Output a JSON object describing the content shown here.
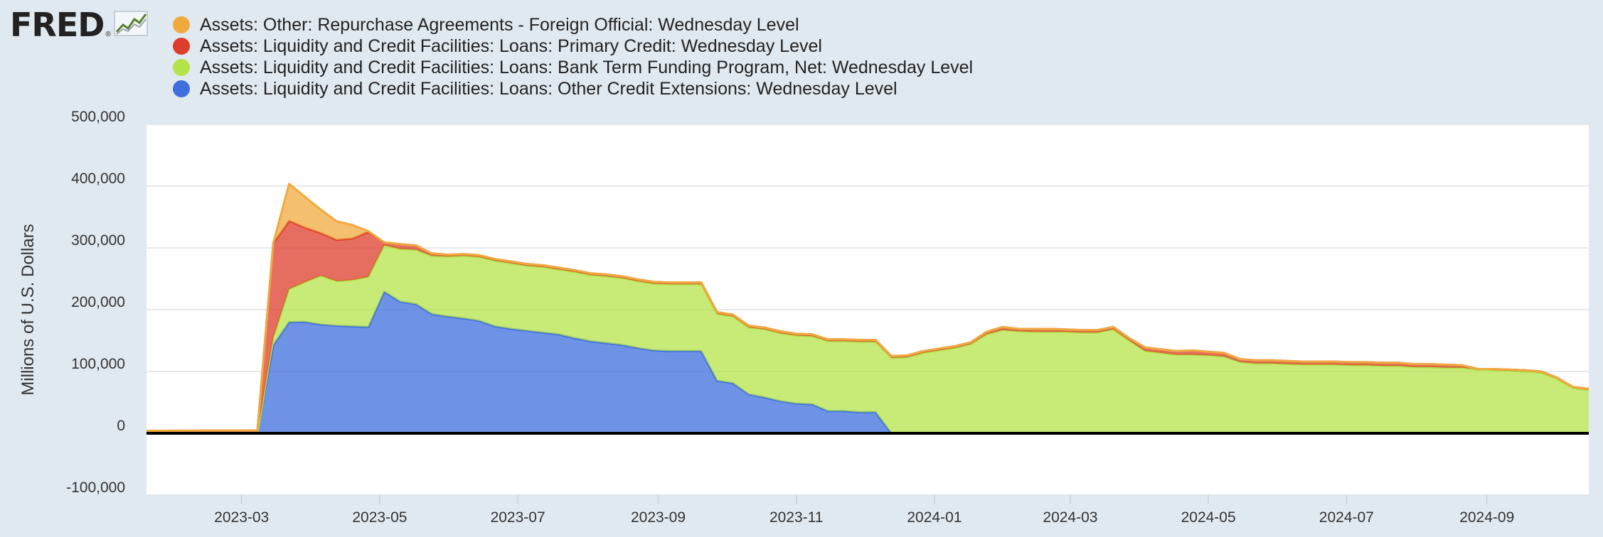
{
  "brand": {
    "name": "FRED",
    "reg": "®",
    "icon": "trend-line-icon"
  },
  "colors": {
    "background": "#e1e9f0",
    "plot": "#ffffff",
    "repo": "#f0a93f",
    "primary": "#dd3d2b",
    "btfp": "#b5e34a",
    "other": "#3e6fdd"
  },
  "chart_data": {
    "type": "area",
    "stacked": true,
    "ylabel": "Millions of U.S. Dollars",
    "ylim": [
      -100000,
      500000
    ],
    "yticks": [
      -100000,
      0,
      100000,
      200000,
      300000,
      400000,
      500000
    ],
    "ytick_labels": [
      "-100,000",
      "0",
      "100,000",
      "200,000",
      "300,000",
      "400,000",
      "500,000"
    ],
    "xlim": [
      "2023-01-18",
      "2024-10-16"
    ],
    "xticks": [
      "2023-03-01",
      "2023-05-01",
      "2023-07-01",
      "2023-09-01",
      "2023-11-01",
      "2024-01-01",
      "2024-03-01",
      "2024-05-01",
      "2024-07-01",
      "2024-09-01"
    ],
    "xtick_labels": [
      "2023-03",
      "2023-05",
      "2023-07",
      "2023-09",
      "2023-11",
      "2024-01",
      "2024-03",
      "2024-05",
      "2024-07",
      "2024-09"
    ],
    "grid": true,
    "legend": "top",
    "series": [
      {
        "name": "Assets: Liquidity and Credit Facilities: Loans: Other Credit Extensions: Wednesday Level",
        "color": "#3e6fdd",
        "points": [
          [
            "2023-01-18",
            0
          ],
          [
            "2023-03-08",
            0
          ],
          [
            "2023-03-15",
            142800
          ],
          [
            "2023-03-22",
            179800
          ],
          [
            "2023-03-29",
            180100
          ],
          [
            "2023-04-05",
            176000
          ],
          [
            "2023-04-12",
            174000
          ],
          [
            "2023-04-19",
            173000
          ],
          [
            "2023-04-26",
            172000
          ],
          [
            "2023-05-03",
            229000
          ],
          [
            "2023-05-10",
            213000
          ],
          [
            "2023-05-17",
            209000
          ],
          [
            "2023-05-24",
            193000
          ],
          [
            "2023-05-31",
            189000
          ],
          [
            "2023-06-07",
            186000
          ],
          [
            "2023-06-14",
            182000
          ],
          [
            "2023-06-21",
            173000
          ],
          [
            "2023-06-28",
            169000
          ],
          [
            "2023-07-05",
            166000
          ],
          [
            "2023-07-12",
            163000
          ],
          [
            "2023-07-19",
            160000
          ],
          [
            "2023-07-26",
            154000
          ],
          [
            "2023-08-02",
            149000
          ],
          [
            "2023-08-09",
            146000
          ],
          [
            "2023-08-16",
            143000
          ],
          [
            "2023-08-23",
            138000
          ],
          [
            "2023-08-30",
            134000
          ],
          [
            "2023-09-06",
            133000
          ],
          [
            "2023-09-13",
            133000
          ],
          [
            "2023-09-20",
            133000
          ],
          [
            "2023-09-27",
            85000
          ],
          [
            "2023-10-04",
            81000
          ],
          [
            "2023-10-11",
            63000
          ],
          [
            "2023-10-18",
            58000
          ],
          [
            "2023-10-25",
            52000
          ],
          [
            "2023-11-01",
            48000
          ],
          [
            "2023-11-08",
            47000
          ],
          [
            "2023-11-15",
            36000
          ],
          [
            "2023-11-22",
            36000
          ],
          [
            "2023-11-29",
            34000
          ],
          [
            "2023-12-06",
            34000
          ],
          [
            "2023-12-13",
            0
          ],
          [
            "2024-10-16",
            0
          ]
        ]
      },
      {
        "name": "Assets: Liquidity and Credit Facilities: Loans: Bank Term Funding Program, Net: Wednesday Level",
        "color": "#b5e34a",
        "points": [
          [
            "2023-01-18",
            0
          ],
          [
            "2023-03-08",
            0
          ],
          [
            "2023-03-15",
            11900
          ],
          [
            "2023-03-22",
            53700
          ],
          [
            "2023-03-29",
            64400
          ],
          [
            "2023-04-05",
            79000
          ],
          [
            "2023-04-12",
            72000
          ],
          [
            "2023-04-19",
            75000
          ],
          [
            "2023-04-26",
            81000
          ],
          [
            "2023-05-03",
            75000
          ],
          [
            "2023-05-10",
            85000
          ],
          [
            "2023-05-17",
            88000
          ],
          [
            "2023-05-24",
            94000
          ],
          [
            "2023-05-31",
            97000
          ],
          [
            "2023-06-07",
            101000
          ],
          [
            "2023-06-14",
            103000
          ],
          [
            "2023-06-21",
            106000
          ],
          [
            "2023-06-28",
            106000
          ],
          [
            "2023-07-05",
            105000
          ],
          [
            "2023-07-12",
            106000
          ],
          [
            "2023-07-19",
            105000
          ],
          [
            "2023-07-26",
            107000
          ],
          [
            "2023-08-02",
            107000
          ],
          [
            "2023-08-09",
            108000
          ],
          [
            "2023-08-16",
            108000
          ],
          [
            "2023-08-23",
            108000
          ],
          [
            "2023-08-30",
            108000
          ],
          [
            "2023-09-06",
            108000
          ],
          [
            "2023-09-13",
            108000
          ],
          [
            "2023-09-20",
            108000
          ],
          [
            "2023-09-27",
            108000
          ],
          [
            "2023-10-04",
            108000
          ],
          [
            "2023-10-11",
            108000
          ],
          [
            "2023-10-18",
            110000
          ],
          [
            "2023-10-25",
            110000
          ],
          [
            "2023-11-01",
            110000
          ],
          [
            "2023-11-08",
            110000
          ],
          [
            "2023-11-15",
            113000
          ],
          [
            "2023-11-22",
            113000
          ],
          [
            "2023-11-29",
            114000
          ],
          [
            "2023-12-06",
            114000
          ],
          [
            "2023-12-13",
            122000
          ],
          [
            "2023-12-20",
            123000
          ],
          [
            "2023-12-27",
            130000
          ],
          [
            "2024-01-03",
            134000
          ],
          [
            "2024-01-10",
            138000
          ],
          [
            "2024-01-17",
            144000
          ],
          [
            "2024-01-24",
            160000
          ],
          [
            "2024-01-31",
            167000
          ],
          [
            "2024-02-07",
            165000
          ],
          [
            "2024-02-14",
            164000
          ],
          [
            "2024-02-21",
            164000
          ],
          [
            "2024-02-28",
            164000
          ],
          [
            "2024-03-06",
            163000
          ],
          [
            "2024-03-13",
            163000
          ],
          [
            "2024-03-20",
            168000
          ],
          [
            "2024-03-27",
            150000
          ],
          [
            "2024-04-03",
            133000
          ],
          [
            "2024-04-10",
            130000
          ],
          [
            "2024-04-17",
            127000
          ],
          [
            "2024-04-24",
            127000
          ],
          [
            "2024-05-01",
            126000
          ],
          [
            "2024-05-08",
            124000
          ],
          [
            "2024-05-15",
            115000
          ],
          [
            "2024-05-22",
            113000
          ],
          [
            "2024-05-29",
            113000
          ],
          [
            "2024-06-05",
            112000
          ],
          [
            "2024-06-12",
            111000
          ],
          [
            "2024-06-19",
            111000
          ],
          [
            "2024-06-26",
            111000
          ],
          [
            "2024-07-03",
            110000
          ],
          [
            "2024-07-10",
            110000
          ],
          [
            "2024-07-17",
            109000
          ],
          [
            "2024-07-24",
            109000
          ],
          [
            "2024-07-31",
            107000
          ],
          [
            "2024-08-07",
            107000
          ],
          [
            "2024-08-14",
            106000
          ],
          [
            "2024-08-21",
            106000
          ],
          [
            "2024-08-28",
            103000
          ],
          [
            "2024-09-04",
            102000
          ],
          [
            "2024-09-11",
            101000
          ],
          [
            "2024-09-18",
            100000
          ],
          [
            "2024-09-25",
            98000
          ],
          [
            "2024-10-02",
            88000
          ],
          [
            "2024-10-09",
            73000
          ],
          [
            "2024-10-16",
            70000
          ]
        ]
      },
      {
        "name": "Assets: Liquidity and Credit Facilities: Loans: Primary Credit: Wednesday Level",
        "color": "#dd3d2b",
        "points": [
          [
            "2023-01-18",
            4000
          ],
          [
            "2023-03-01",
            4500
          ],
          [
            "2023-03-08",
            4600
          ],
          [
            "2023-03-15",
            152900
          ],
          [
            "2023-03-22",
            110200
          ],
          [
            "2023-03-29",
            88200
          ],
          [
            "2023-04-05",
            69000
          ],
          [
            "2023-04-12",
            67000
          ],
          [
            "2023-04-19",
            67000
          ],
          [
            "2023-04-26",
            73000
          ],
          [
            "2023-05-03",
            5000
          ],
          [
            "2023-05-10",
            8000
          ],
          [
            "2023-05-17",
            7000
          ],
          [
            "2023-05-24",
            4000
          ],
          [
            "2023-05-31",
            3000
          ],
          [
            "2023-06-07",
            3000
          ],
          [
            "2023-06-14",
            3000
          ],
          [
            "2023-06-21",
            3000
          ],
          [
            "2023-06-28",
            3000
          ],
          [
            "2023-07-05",
            3000
          ],
          [
            "2023-07-12",
            3000
          ],
          [
            "2023-07-19",
            3000
          ],
          [
            "2023-07-26",
            3000
          ],
          [
            "2023-08-02",
            3000
          ],
          [
            "2023-08-09",
            3000
          ],
          [
            "2023-08-16",
            3000
          ],
          [
            "2023-08-23",
            3000
          ],
          [
            "2023-08-30",
            3000
          ],
          [
            "2023-09-06",
            3000
          ],
          [
            "2023-09-13",
            3000
          ],
          [
            "2023-09-20",
            3000
          ],
          [
            "2023-09-27",
            3000
          ],
          [
            "2023-10-04",
            3000
          ],
          [
            "2023-10-11",
            3000
          ],
          [
            "2023-10-18",
            3000
          ],
          [
            "2023-10-25",
            3000
          ],
          [
            "2023-11-01",
            3000
          ],
          [
            "2023-11-08",
            3000
          ],
          [
            "2023-11-15",
            3000
          ],
          [
            "2023-11-22",
            3000
          ],
          [
            "2023-11-29",
            3000
          ],
          [
            "2023-12-06",
            3000
          ],
          [
            "2023-12-13",
            3000
          ],
          [
            "2023-12-20",
            3000
          ],
          [
            "2023-12-27",
            3000
          ],
          [
            "2024-01-03",
            3000
          ],
          [
            "2024-01-10",
            3000
          ],
          [
            "2024-01-17",
            3000
          ],
          [
            "2024-01-24",
            4000
          ],
          [
            "2024-01-31",
            5000
          ],
          [
            "2024-02-07",
            4000
          ],
          [
            "2024-02-14",
            5000
          ],
          [
            "2024-02-21",
            5000
          ],
          [
            "2024-02-28",
            4000
          ],
          [
            "2024-03-06",
            4000
          ],
          [
            "2024-03-13",
            4000
          ],
          [
            "2024-03-20",
            4000
          ],
          [
            "2024-03-27",
            4000
          ],
          [
            "2024-04-03",
            6000
          ],
          [
            "2024-04-10",
            6000
          ],
          [
            "2024-04-17",
            6000
          ],
          [
            "2024-04-24",
            7000
          ],
          [
            "2024-05-01",
            6000
          ],
          [
            "2024-05-08",
            6000
          ],
          [
            "2024-05-15",
            5000
          ],
          [
            "2024-05-22",
            5000
          ],
          [
            "2024-05-29",
            5000
          ],
          [
            "2024-06-05",
            5000
          ],
          [
            "2024-06-12",
            5000
          ],
          [
            "2024-06-19",
            5000
          ],
          [
            "2024-06-26",
            5000
          ],
          [
            "2024-07-03",
            5000
          ],
          [
            "2024-07-10",
            5000
          ],
          [
            "2024-07-17",
            5000
          ],
          [
            "2024-07-24",
            5000
          ],
          [
            "2024-07-31",
            5000
          ],
          [
            "2024-08-07",
            5000
          ],
          [
            "2024-08-14",
            5000
          ],
          [
            "2024-08-21",
            4000
          ],
          [
            "2024-08-28",
            1000
          ],
          [
            "2024-09-04",
            2000
          ],
          [
            "2024-09-11",
            2000
          ],
          [
            "2024-09-18",
            2000
          ],
          [
            "2024-09-25",
            2000
          ],
          [
            "2024-10-02",
            2000
          ],
          [
            "2024-10-09",
            2000
          ],
          [
            "2024-10-16",
            2000
          ]
        ]
      },
      {
        "name": "Assets: Other: Repurchase Agreements - Foreign Official: Wednesday Level",
        "color": "#f0a93f",
        "points": [
          [
            "2023-01-18",
            0
          ],
          [
            "2023-03-08",
            0
          ],
          [
            "2023-03-15",
            0
          ],
          [
            "2023-03-22",
            60000
          ],
          [
            "2023-03-29",
            50000
          ],
          [
            "2023-04-05",
            38000
          ],
          [
            "2023-04-12",
            30000
          ],
          [
            "2023-04-19",
            22000
          ],
          [
            "2023-04-26",
            1000
          ],
          [
            "2023-05-03",
            0
          ],
          [
            "2024-10-16",
            0
          ]
        ]
      }
    ]
  }
}
